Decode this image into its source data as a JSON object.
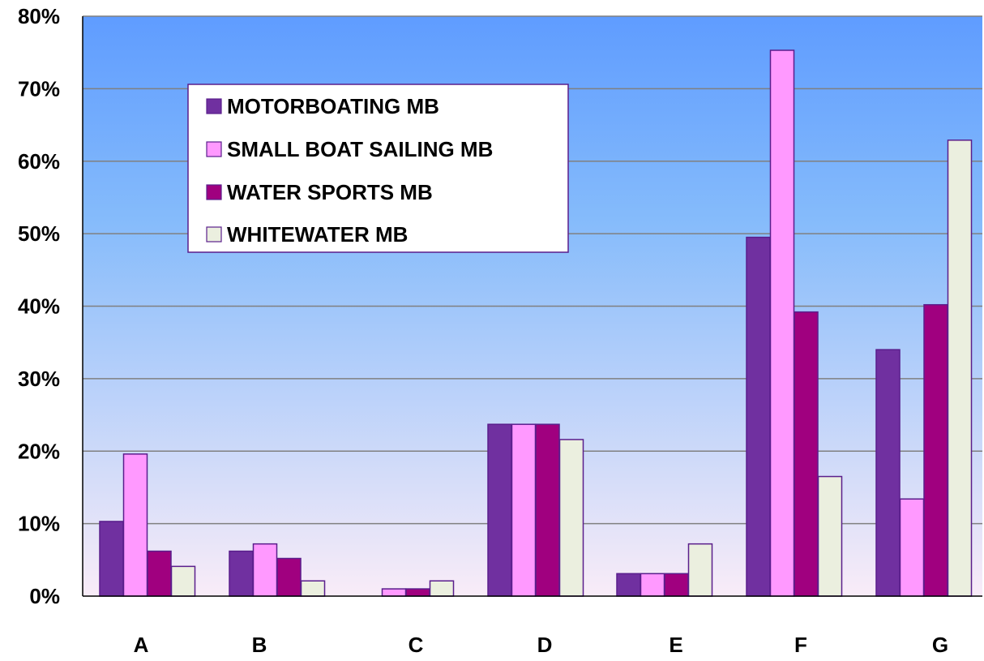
{
  "chart_data": {
    "type": "bar",
    "title": "",
    "xlabel": "",
    "ylabel": "",
    "categories": [
      "A",
      "B",
      "C",
      "D",
      "E",
      "F",
      "G"
    ],
    "series": [
      {
        "name": "MOTORBOATING MB",
        "values": [
          10.3,
          6.2,
          0,
          23.7,
          3.1,
          49.5,
          34.0
        ],
        "color": "#7030a0"
      },
      {
        "name": "SMALL BOAT SAILING MB",
        "values": [
          19.6,
          7.2,
          1.0,
          23.7,
          3.1,
          75.3,
          13.4
        ],
        "color": "#ff99ff"
      },
      {
        "name": "WATER SPORTS MB",
        "values": [
          6.2,
          5.2,
          1.0,
          23.7,
          3.1,
          39.2,
          40.2
        ],
        "color": "#a0007f"
      },
      {
        "name": "WHITEWATER MB",
        "values": [
          4.1,
          2.1,
          2.1,
          21.6,
          7.2,
          16.5,
          62.9
        ],
        "color": "#ebefdf"
      }
    ],
    "ylim": [
      0,
      80
    ],
    "yticks": [
      "0%",
      "10%",
      "20%",
      "30%",
      "40%",
      "50%",
      "60%",
      "70%",
      "80%"
    ],
    "grid": true,
    "legend_position": "top-left",
    "background_gradient": [
      "#5f9cff",
      "#f9ecf8"
    ],
    "bar_outline_color": "#5a1e8c"
  }
}
